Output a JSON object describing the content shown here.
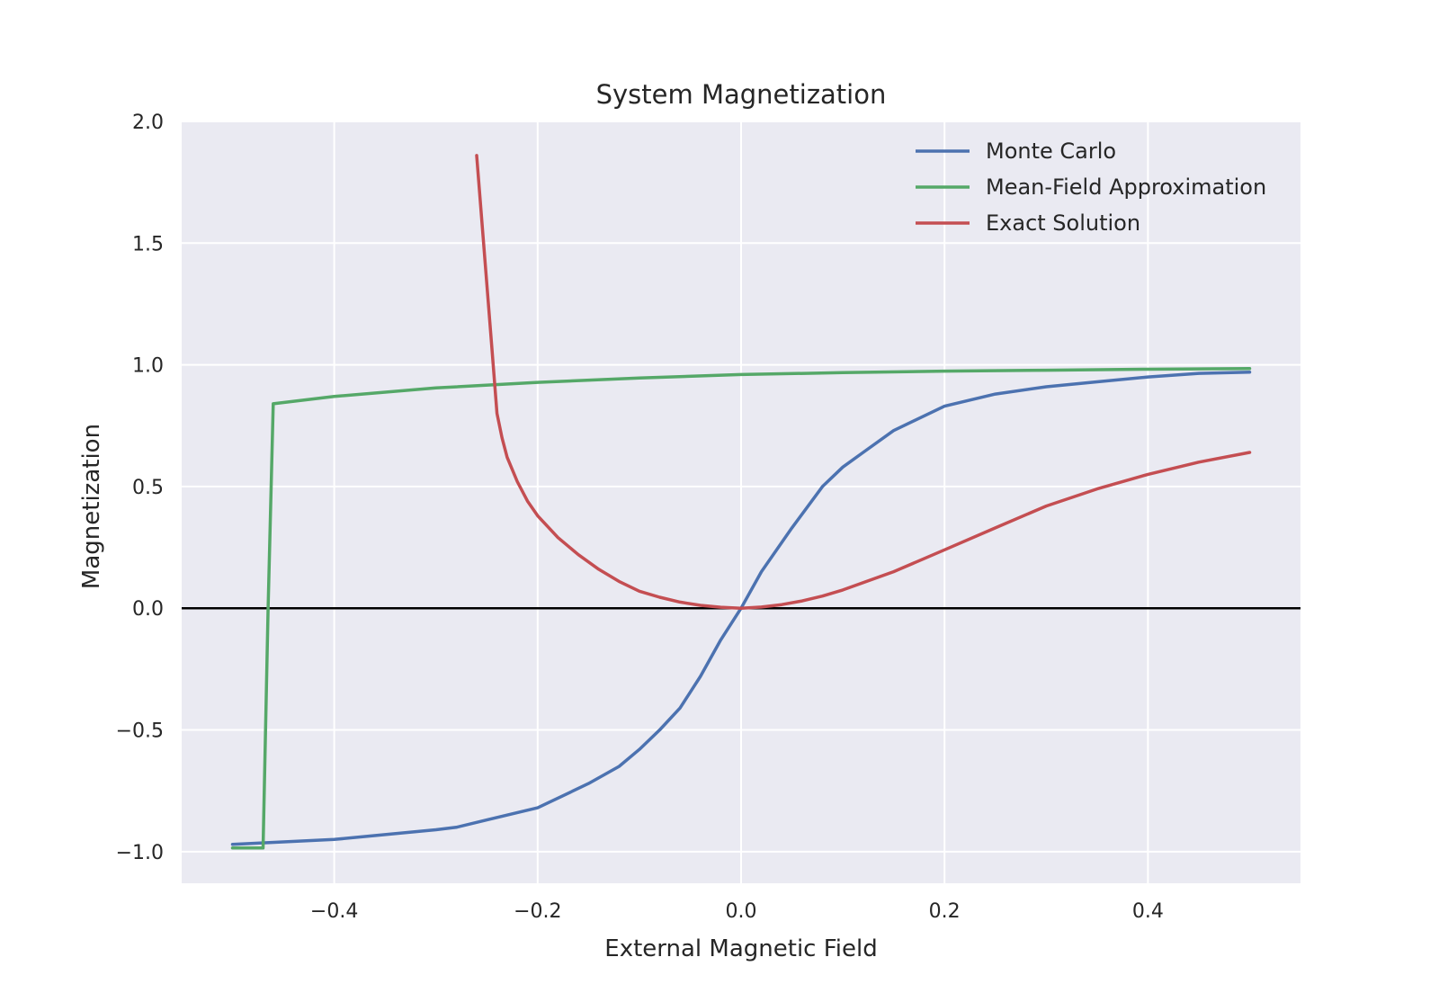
{
  "chart_data": {
    "type": "line",
    "title": "System Magnetization",
    "xlabel": "External Magnetic Field",
    "ylabel": "Magnetization",
    "xlim": [
      -0.55,
      0.55
    ],
    "ylim": [
      -1.13,
      2.0
    ],
    "x_ticks": [
      -0.4,
      -0.2,
      0.0,
      0.2,
      0.4
    ],
    "x_tick_labels": [
      "−0.4",
      "−0.2",
      "0.0",
      "0.2",
      "0.4"
    ],
    "y_ticks": [
      -1.0,
      -0.5,
      0.0,
      0.5,
      1.0,
      1.5,
      2.0
    ],
    "y_tick_labels": [
      "−1.0",
      "−0.5",
      "0.0",
      "0.5",
      "1.0",
      "1.5",
      "2.0"
    ],
    "grid": true,
    "legend_position": "top-right",
    "background_color": "#eaeaf2",
    "zero_line": {
      "y": 0.0,
      "color": "#000000"
    },
    "series": [
      {
        "name": "Monte Carlo",
        "color": "#4c72b0",
        "x": [
          -0.5,
          -0.45,
          -0.4,
          -0.35,
          -0.3,
          -0.28,
          -0.25,
          -0.2,
          -0.15,
          -0.12,
          -0.1,
          -0.08,
          -0.06,
          -0.04,
          -0.02,
          0.0,
          0.02,
          0.05,
          0.08,
          0.1,
          0.12,
          0.15,
          0.2,
          0.25,
          0.3,
          0.35,
          0.4,
          0.45,
          0.5
        ],
        "y": [
          -0.97,
          -0.96,
          -0.95,
          -0.93,
          -0.91,
          -0.9,
          -0.87,
          -0.82,
          -0.72,
          -0.65,
          -0.58,
          -0.5,
          -0.41,
          -0.28,
          -0.13,
          0.0,
          0.15,
          0.33,
          0.5,
          0.58,
          0.64,
          0.73,
          0.83,
          0.88,
          0.91,
          0.93,
          0.95,
          0.965,
          0.97
        ]
      },
      {
        "name": "Mean-Field Approximation",
        "color": "#55a868",
        "x": [
          -0.5,
          -0.47,
          -0.465,
          -0.46,
          -0.4,
          -0.3,
          -0.2,
          -0.1,
          0.0,
          0.1,
          0.2,
          0.3,
          0.4,
          0.5
        ],
        "y": [
          -0.985,
          -0.985,
          0.0,
          0.84,
          0.87,
          0.905,
          0.928,
          0.946,
          0.96,
          0.968,
          0.974,
          0.978,
          0.982,
          0.985
        ]
      },
      {
        "name": "Exact Solution",
        "color": "#c44e52",
        "x": [
          -0.26,
          -0.245,
          -0.24,
          -0.235,
          -0.23,
          -0.22,
          -0.21,
          -0.2,
          -0.18,
          -0.16,
          -0.14,
          -0.12,
          -0.1,
          -0.08,
          -0.06,
          -0.04,
          -0.02,
          0.0,
          0.02,
          0.04,
          0.06,
          0.08,
          0.1,
          0.15,
          0.2,
          0.25,
          0.3,
          0.35,
          0.4,
          0.45,
          0.5
        ],
        "y": [
          1.86,
          1.07,
          0.8,
          0.7,
          0.62,
          0.52,
          0.44,
          0.38,
          0.29,
          0.22,
          0.16,
          0.11,
          0.07,
          0.045,
          0.025,
          0.012,
          0.004,
          0.0,
          0.005,
          0.015,
          0.03,
          0.05,
          0.075,
          0.15,
          0.24,
          0.33,
          0.42,
          0.49,
          0.55,
          0.6,
          0.64
        ]
      }
    ]
  }
}
